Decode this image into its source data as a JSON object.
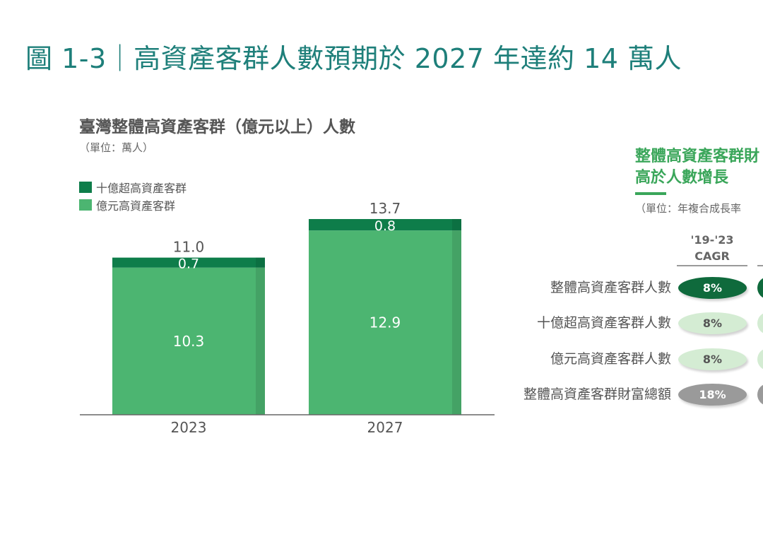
{
  "title": "圖 1-3｜高資產客群人數預期於 2027 年達約 14 萬人",
  "chart_data": {
    "type": "bar",
    "stacked": true,
    "title": "臺灣整體高資產客群（億元以上）人數",
    "unit": "（單位：萬人）",
    "categories": [
      "2023",
      "2027"
    ],
    "series": [
      {
        "name": "億元高資產客群",
        "values": [
          10.3,
          12.9
        ],
        "color": "#4cb571"
      },
      {
        "name": "十億超高資產客群",
        "values": [
          0.7,
          0.8
        ],
        "color": "#0e7d4a"
      }
    ],
    "totals": [
      "11.0",
      "13.7"
    ],
    "segment_labels": {
      "億元高資產客群": [
        "10.3",
        "12.9"
      ],
      "十億超高資產客群": [
        "0.7",
        "0.8"
      ]
    },
    "ylim": [
      0,
      15
    ],
    "legend": [
      "十億超高資產客群",
      "億元高資產客群"
    ],
    "legend_placement": "top-left",
    "xlabel": "",
    "ylabel": ""
  },
  "side_panel": {
    "title_line1": "整體高資產客群財",
    "title_line2": "高於人數增長",
    "unit": "（單位：年複合成長率",
    "column_header_line1": "'19-'23",
    "column_header_line2": "CAGR",
    "rows": [
      {
        "label": "整體高資產客群人數",
        "value": "8%",
        "style": "dark"
      },
      {
        "label": "十億超高資產客群人數",
        "value": "8%",
        "style": "light"
      },
      {
        "label": "億元高資產客群人數",
        "value": "8%",
        "style": "light"
      },
      {
        "label": "整體高資產客群財富總額",
        "value": "18%",
        "style": "gray"
      }
    ]
  },
  "colors": {
    "title": "#1e7f7a",
    "dark_green": "#0e7d4a",
    "mid_green": "#4cb571",
    "light_green": "#d4ecd3",
    "accent_green": "#3aa65a",
    "gray": "#9a9a9a"
  }
}
